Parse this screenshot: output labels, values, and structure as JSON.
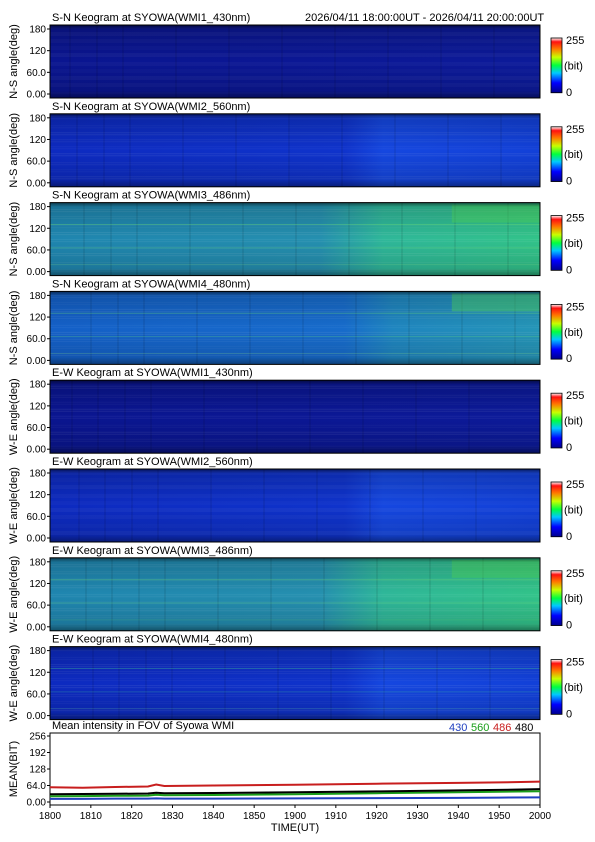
{
  "header": {
    "time_range": "2026/04/11 18:00:00UT - 2026/04/11 20:00:00UT"
  },
  "colorbar": {
    "max_label": "255",
    "unit_label": "(bit)",
    "min_label": "0"
  },
  "panels": [
    {
      "title": "S-N Keogram at SYOWA(WMI1_430nm)",
      "ylabel": "N-S angle(deg)",
      "yticks": [
        "180",
        "120",
        "60.0",
        "0.00"
      ],
      "level": "dark",
      "bright_end": false
    },
    {
      "title": "S-N Keogram at SYOWA(WMI2_560nm)",
      "ylabel": "N-S angle(deg)",
      "yticks": [
        "180",
        "120",
        "60.0",
        "0.00"
      ],
      "level": "blue",
      "bright_end": false
    },
    {
      "title": "S-N Keogram at SYOWA(WMI3_486nm)",
      "ylabel": "N-S angle(deg)",
      "yticks": [
        "180",
        "120",
        "60.0",
        "0.00"
      ],
      "level": "green",
      "bright_end": true
    },
    {
      "title": "S-N Keogram at SYOWA(WMI4_480nm)",
      "ylabel": "N-S angle(deg)",
      "yticks": [
        "180",
        "120",
        "60.0",
        "0.00"
      ],
      "level": "teal",
      "bright_end": true
    },
    {
      "title": "E-W Keogram at SYOWA(WMI1_430nm)",
      "ylabel": "W-E angle(deg)",
      "yticks": [
        "180",
        "120",
        "60.0",
        "0.00"
      ],
      "level": "dark",
      "bright_end": false
    },
    {
      "title": "E-W Keogram at SYOWA(WMI2_560nm)",
      "ylabel": "W-E angle(deg)",
      "yticks": [
        "180",
        "120",
        "60.0",
        "0.00"
      ],
      "level": "blue",
      "bright_end": false
    },
    {
      "title": "E-W Keogram at SYOWA(WMI3_486nm)",
      "ylabel": "W-E angle(deg)",
      "yticks": [
        "180",
        "120",
        "60.0",
        "0.00"
      ],
      "level": "green",
      "bright_end": true
    },
    {
      "title": "E-W Keogram at SYOWA(WMI4_480nm)",
      "ylabel": "W-E angle(deg)",
      "yticks": [
        "180",
        "120",
        "60.0",
        "0.00"
      ],
      "level": "blue",
      "bright_end": false
    }
  ],
  "chart_data": {
    "type": "line",
    "title": "Mean intensity in FOV of Syowa WMI",
    "xlabel": "TIME(UT)",
    "ylabel": "MEAN(BIT)",
    "x_ticks": [
      "1800",
      "1810",
      "1820",
      "1830",
      "1840",
      "1850",
      "1900",
      "1910",
      "1920",
      "1930",
      "1940",
      "1950",
      "2000"
    ],
    "y_ticks": [
      "256",
      "192",
      "128",
      "64.0",
      "0.00"
    ],
    "ylim": [
      0,
      256
    ],
    "x_minutes": [
      0,
      8,
      16,
      24,
      26,
      28,
      40,
      60,
      80,
      100,
      110,
      120
    ],
    "series": [
      {
        "name": "430",
        "color": "#1f3fbf",
        "values": [
          12,
          12,
          13,
          13,
          14,
          13,
          13,
          14,
          15,
          16,
          17,
          18
        ]
      },
      {
        "name": "560",
        "color": "#1a9e1a",
        "values": [
          22,
          23,
          24,
          25,
          28,
          26,
          27,
          30,
          34,
          38,
          40,
          42
        ]
      },
      {
        "name": "486",
        "color": "#c81e1e",
        "values": [
          57,
          55,
          58,
          60,
          68,
          62,
          64,
          67,
          71,
          74,
          76,
          79
        ]
      },
      {
        "name": "480",
        "color": "#000000",
        "values": [
          30,
          31,
          32,
          33,
          36,
          34,
          35,
          38,
          41,
          45,
          47,
          50
        ]
      }
    ]
  }
}
